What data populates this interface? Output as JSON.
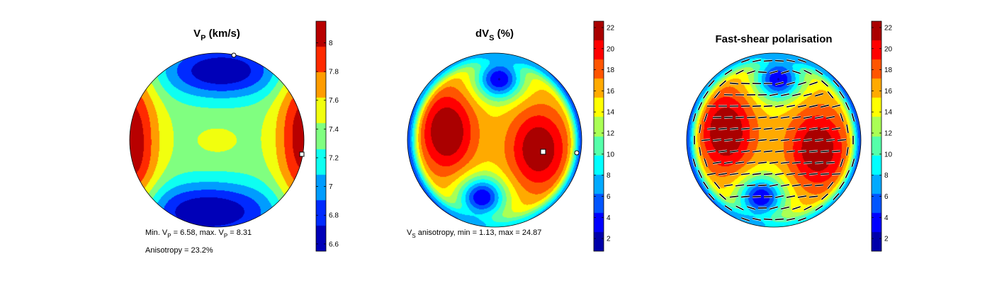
{
  "chart_data": [
    {
      "type": "heatmap",
      "projection": "stereonet",
      "title_main": "V",
      "title_sub": "P",
      "title_rest": " (km/s)",
      "colormap": "jet",
      "colorbar": {
        "min": 6.55,
        "max": 8.15,
        "ticks": [
          8,
          7.8,
          7.6,
          7.4,
          7.2,
          7,
          6.8,
          6.6
        ]
      },
      "min_value": 6.58,
      "max_value": 8.31,
      "anisotropy_percent": 23.2,
      "max_marker": "circle near top",
      "min_marker": "square at right edge",
      "annotation_line1": [
        "Min. V",
        "P",
        " =  6.58, max. V",
        "P",
        " =  8.31"
      ],
      "annotation_line2": "Anisotropy =  23.2%"
    },
    {
      "type": "heatmap",
      "projection": "stereonet",
      "title_main": "dV",
      "title_sub": "S",
      "title_rest": " (%)",
      "colormap": "jet",
      "colorbar": {
        "min": 0.8,
        "max": 22.6,
        "ticks": [
          22,
          20,
          18,
          16,
          14,
          12,
          10,
          8,
          6,
          4,
          2
        ]
      },
      "min_value": 1.13,
      "max_value": 24.87,
      "max_marker": "square right of centre",
      "min_marker": "circle at right edge",
      "annotation_line1": [
        "V",
        "S",
        " anisotropy, min =  1.13, max = 24.87"
      ]
    },
    {
      "type": "heatmap",
      "projection": "stereonet",
      "title": "Fast-shear polarisation",
      "colormap": "jet",
      "overlay": "polarisation ticks",
      "colorbar": {
        "min": 0.8,
        "max": 22.6,
        "ticks": [
          22,
          20,
          18,
          16,
          14,
          12,
          10,
          8,
          6,
          4,
          2
        ]
      }
    }
  ]
}
